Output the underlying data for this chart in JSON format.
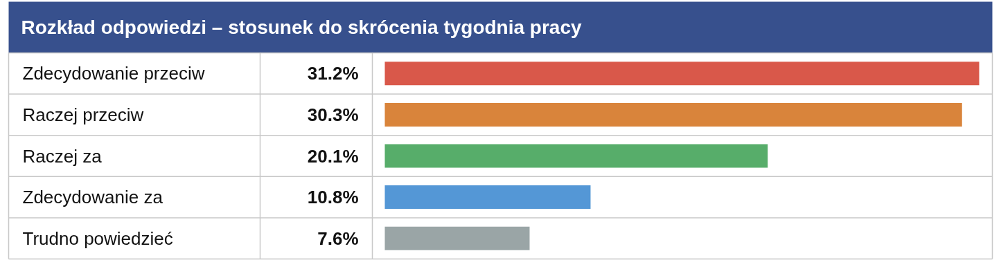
{
  "chart_data": {
    "type": "bar",
    "orientation": "horizontal",
    "title": "Rozkład odpowiedzi – stosunek do skrócenia tygodnia pracy",
    "categories": [
      "Zdecydowanie przeciw",
      "Raczej przeciw",
      "Raczej za",
      "Zdecydowanie za",
      "Trudno powiedzieć"
    ],
    "values": [
      31.2,
      30.3,
      20.1,
      10.8,
      7.6
    ],
    "colors": [
      "#d9584a",
      "#d9843b",
      "#57ad6a",
      "#5497d6",
      "#9aa5a6"
    ],
    "value_labels": [
      "31.2%",
      "30.3%",
      "20.1%",
      "10.8%",
      "7.6%"
    ],
    "grid": false
  }
}
